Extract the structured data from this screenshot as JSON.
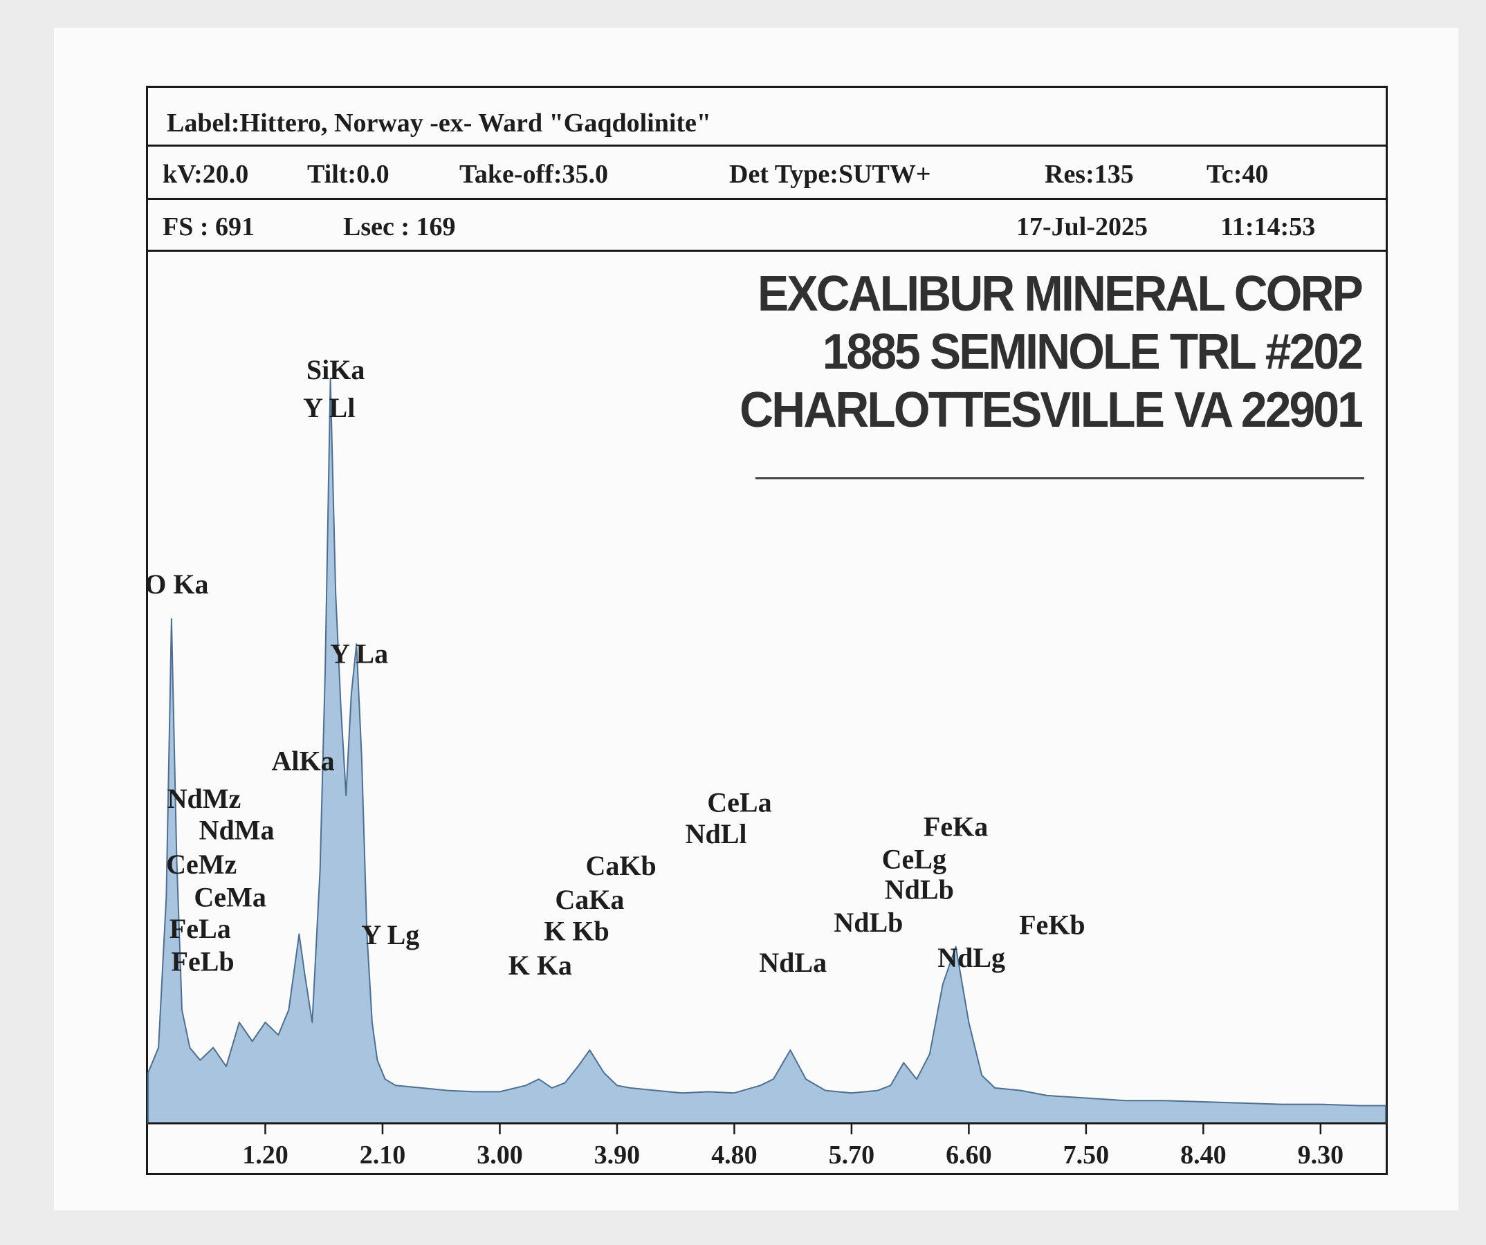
{
  "header": {
    "label": "Label:Hittero, Norway -ex- Ward \"Gaqdolinite\"",
    "kv": "kV:20.0",
    "tilt": "Tilt:0.0",
    "takeoff": "Take-off:35.0",
    "det_type": "Det Type:SUTW+",
    "res": "Res:135",
    "tc": "Tc:40",
    "fs": "FS : 691",
    "lsec": "Lsec : 169",
    "date": "17-Jul-2025",
    "time": "11:14:53"
  },
  "stamp": {
    "line1": "EXCALIBUR MINERAL CORP",
    "line2": "1885 SEMINOLE TRL #202",
    "line3": "CHARLOTTESVILLE VA 22901"
  },
  "colors": {
    "spectrum_fill": "#a9c4de",
    "spectrum_line": "#4e6f92",
    "text": "#1d1d1d"
  },
  "chart_data": {
    "type": "area",
    "xlim": [
      0.3,
      9.8
    ],
    "ylim": [
      0,
      691
    ],
    "x_ticks": [
      1.2,
      2.1,
      3.0,
      3.9,
      4.8,
      5.7,
      6.6,
      7.5,
      8.4,
      9.3
    ],
    "x_tick_labels": [
      "1.20",
      "2.10",
      "3.00",
      "3.90",
      "4.80",
      "5.70",
      "6.60",
      "7.50",
      "8.40",
      "9.30"
    ],
    "series": [
      {
        "x": [
          0.3,
          0.38,
          0.44,
          0.48,
          0.52,
          0.56,
          0.62,
          0.7,
          0.8,
          0.9,
          1.0,
          1.1,
          1.2,
          1.3,
          1.38,
          1.46,
          1.5,
          1.56,
          1.62,
          1.66,
          1.7,
          1.74,
          1.78,
          1.82,
          1.86,
          1.9,
          1.94,
          1.98,
          2.02,
          2.06,
          2.12,
          2.2,
          2.4,
          2.6,
          2.8,
          3.0,
          3.2,
          3.3,
          3.4,
          3.5,
          3.6,
          3.69,
          3.8,
          3.9,
          4.0,
          4.2,
          4.4,
          4.6,
          4.8,
          5.0,
          5.1,
          5.23,
          5.35,
          5.5,
          5.7,
          5.9,
          6.0,
          6.1,
          6.2,
          6.3,
          6.4,
          6.5,
          6.6,
          6.7,
          6.8,
          7.0,
          7.2,
          7.5,
          7.8,
          8.1,
          8.4,
          8.7,
          9.0,
          9.3,
          9.6,
          9.8
        ],
        "y": [
          40,
          60,
          180,
          400,
          210,
          90,
          60,
          50,
          60,
          45,
          80,
          65,
          80,
          70,
          90,
          150,
          120,
          80,
          200,
          360,
          590,
          420,
          330,
          260,
          340,
          380,
          290,
          150,
          80,
          50,
          35,
          30,
          28,
          26,
          25,
          25,
          30,
          35,
          28,
          32,
          45,
          58,
          40,
          30,
          28,
          26,
          24,
          25,
          24,
          30,
          35,
          58,
          35,
          26,
          24,
          26,
          30,
          48,
          35,
          55,
          110,
          140,
          80,
          38,
          28,
          26,
          22,
          20,
          18,
          18,
          17,
          16,
          15,
          15,
          14,
          14
        ]
      }
    ],
    "peak_labels": [
      {
        "text": "O Ka",
        "x": 0.52,
        "y": 420
      },
      {
        "text": "SiKa",
        "x": 1.74,
        "y": 590
      },
      {
        "text": "Y Ll",
        "x": 1.69,
        "y": 560
      },
      {
        "text": "Y La",
        "x": 1.92,
        "y": 365
      },
      {
        "text": "AlKa",
        "x": 1.49,
        "y": 280
      },
      {
        "text": "NdMz",
        "x": 0.73,
        "y": 250
      },
      {
        "text": "NdMa",
        "x": 0.98,
        "y": 225
      },
      {
        "text": "CeMz",
        "x": 0.71,
        "y": 198
      },
      {
        "text": "CeMa",
        "x": 0.93,
        "y": 172
      },
      {
        "text": "FeLa",
        "x": 0.7,
        "y": 147
      },
      {
        "text": "FeLb",
        "x": 0.72,
        "y": 121
      },
      {
        "text": "Y Lg",
        "x": 2.16,
        "y": 142
      },
      {
        "text": "K Ka",
        "x": 3.31,
        "y": 118
      },
      {
        "text": "K Kb",
        "x": 3.59,
        "y": 145
      },
      {
        "text": "CaKa",
        "x": 3.69,
        "y": 170
      },
      {
        "text": "CaKb",
        "x": 3.93,
        "y": 197
      },
      {
        "text": "NdLl",
        "x": 4.66,
        "y": 222
      },
      {
        "text": "CeLa",
        "x": 4.84,
        "y": 247
      },
      {
        "text": "NdLa",
        "x": 5.25,
        "y": 120
      },
      {
        "text": "NdLb",
        "x": 5.83,
        "y": 152
      },
      {
        "text": "NdLb",
        "x": 6.22,
        "y": 178
      },
      {
        "text": "CeLg",
        "x": 6.18,
        "y": 202
      },
      {
        "text": "FeKa",
        "x": 6.5,
        "y": 228
      },
      {
        "text": "FeKb",
        "x": 7.24,
        "y": 150
      },
      {
        "text": "NdLg",
        "x": 6.62,
        "y": 124
      }
    ]
  }
}
